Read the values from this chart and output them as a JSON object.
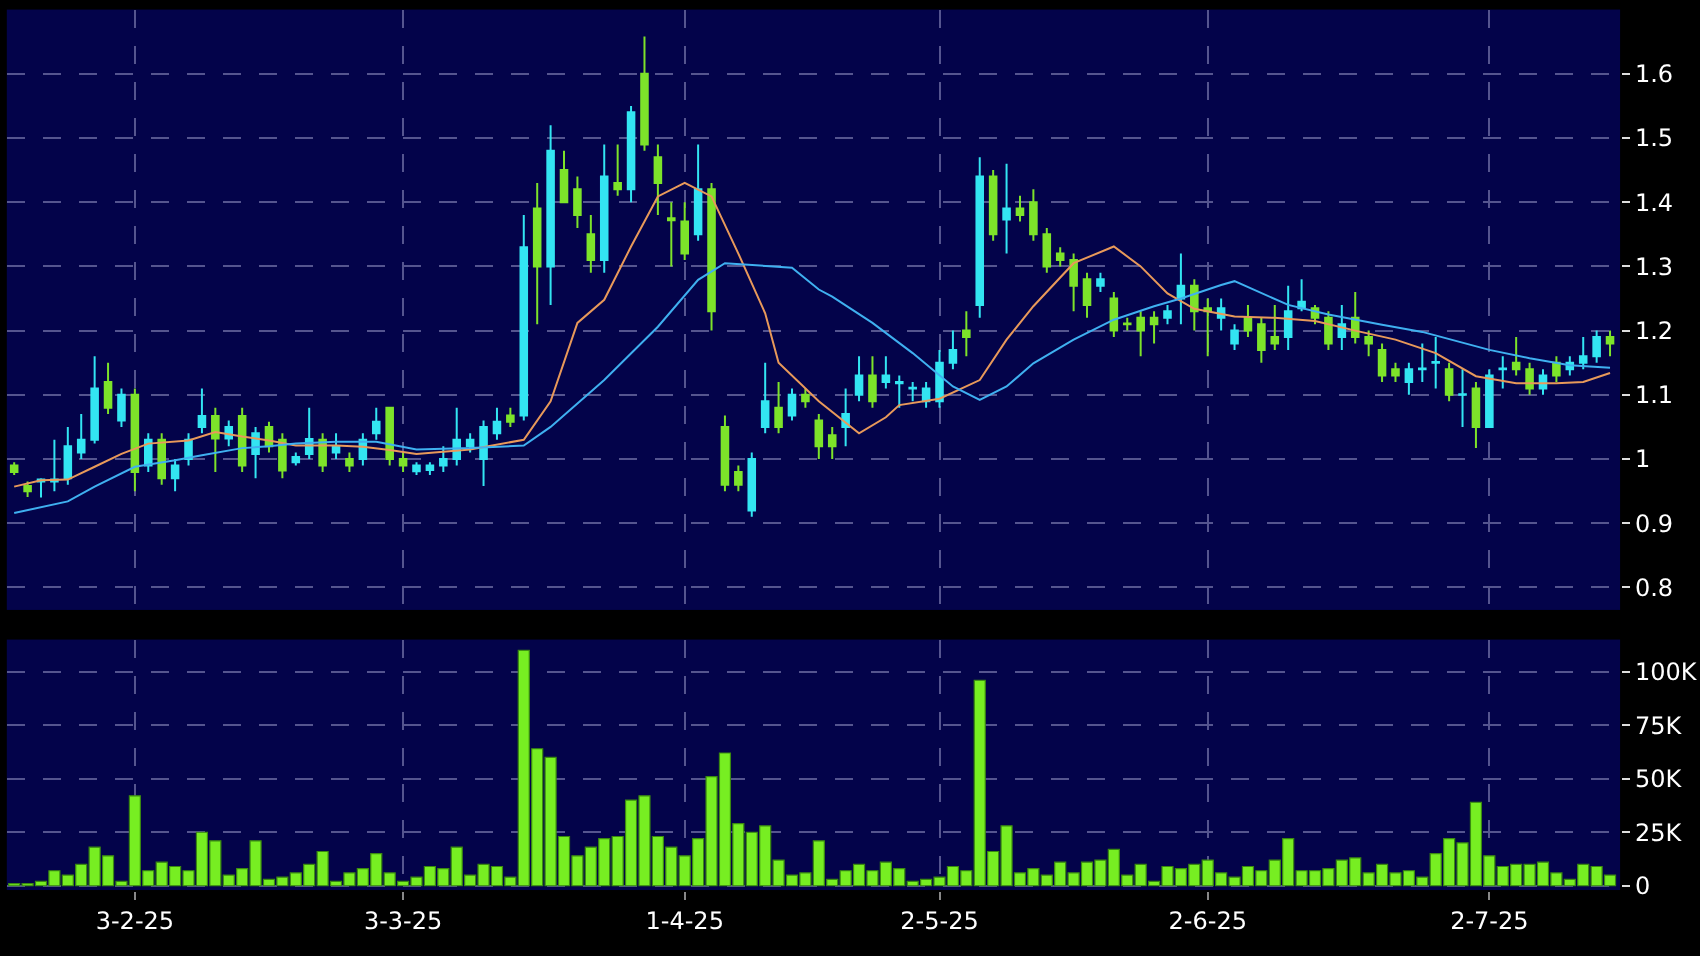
{
  "chart_data": [
    {
      "type": "candlestick",
      "categories": [
        null,
        null,
        null,
        null,
        null,
        null,
        null,
        null,
        null,
        null,
        null,
        null,
        null,
        null,
        null,
        null,
        null,
        null,
        null,
        null,
        null,
        null,
        null,
        null,
        null,
        null,
        null,
        null,
        null,
        null,
        null,
        null,
        null,
        null,
        null,
        null,
        null,
        null,
        null,
        null,
        null,
        null,
        null,
        null,
        null,
        null,
        null,
        null,
        null,
        null,
        null,
        null,
        null,
        null,
        null,
        null,
        null,
        null,
        null,
        null,
        null,
        null,
        null,
        null,
        null,
        null,
        null,
        null,
        null,
        null,
        null,
        null,
        null,
        null,
        null,
        null,
        null,
        null,
        null,
        null,
        null,
        null,
        null,
        null,
        null,
        null,
        null,
        null,
        null,
        null,
        null,
        null,
        null,
        null,
        null,
        null,
        null,
        null,
        null,
        null,
        null,
        null,
        null,
        null,
        null,
        null,
        null,
        null,
        null,
        null,
        null,
        null,
        null,
        null,
        null,
        null,
        null,
        null,
        null,
        null
      ],
      "ohlc": [
        [
          0.99,
          0.995,
          0.975,
          0.98
        ],
        [
          0.958,
          0.965,
          0.941,
          0.95
        ],
        [
          0.965,
          0.97,
          0.94,
          0.968
        ],
        [
          0.965,
          1.03,
          0.95,
          0.968
        ],
        [
          0.97,
          1.05,
          0.96,
          1.02
        ],
        [
          1.01,
          1.07,
          1.0,
          1.03
        ],
        [
          1.03,
          1.16,
          1.024,
          1.11
        ],
        [
          1.12,
          1.15,
          1.07,
          1.08
        ],
        [
          1.06,
          1.11,
          1.05,
          1.1
        ],
        [
          1.1,
          1.11,
          0.95,
          0.98
        ],
        [
          0.99,
          1.04,
          0.98,
          1.03
        ],
        [
          1.03,
          1.04,
          0.96,
          0.97
        ],
        [
          0.97,
          1.0,
          0.95,
          0.99
        ],
        [
          1.0,
          1.04,
          0.99,
          1.03
        ],
        [
          1.05,
          1.11,
          1.04,
          1.067
        ],
        [
          1.067,
          1.08,
          0.98,
          1.032
        ],
        [
          1.032,
          1.06,
          1.02,
          1.05
        ],
        [
          1.067,
          1.08,
          0.98,
          0.99
        ],
        [
          1.008,
          1.05,
          0.97,
          1.04
        ],
        [
          1.05,
          1.058,
          1.01,
          1.02
        ],
        [
          1.03,
          1.04,
          0.97,
          0.982
        ],
        [
          0.995,
          1.01,
          0.99,
          1.003
        ],
        [
          1.008,
          1.08,
          1.0,
          1.031
        ],
        [
          1.03,
          1.04,
          0.98,
          0.99
        ],
        [
          1.01,
          1.04,
          1.0,
          1.02
        ],
        [
          1.0,
          1.01,
          0.98,
          0.99
        ],
        [
          1.0,
          1.04,
          0.99,
          1.03
        ],
        [
          1.04,
          1.08,
          1.03,
          1.058
        ],
        [
          1.08,
          1.08,
          0.99,
          1.0
        ],
        [
          1.0,
          1.01,
          0.98,
          0.99
        ],
        [
          0.981,
          0.995,
          0.975,
          0.99
        ],
        [
          0.983,
          0.995,
          0.975,
          0.99
        ],
        [
          0.99,
          1.02,
          0.98,
          1.0
        ],
        [
          1.0,
          1.08,
          0.99,
          1.03
        ],
        [
          1.02,
          1.04,
          1.01,
          1.03
        ],
        [
          1.0,
          1.06,
          0.958,
          1.05
        ],
        [
          1.04,
          1.08,
          1.03,
          1.058
        ],
        [
          1.068,
          1.08,
          1.05,
          1.058
        ],
        [
          1.068,
          1.38,
          1.06,
          1.33
        ],
        [
          1.39,
          1.43,
          1.21,
          1.3
        ],
        [
          1.3,
          1.52,
          1.24,
          1.48
        ],
        [
          1.45,
          1.48,
          1.4,
          1.4
        ],
        [
          1.42,
          1.44,
          1.36,
          1.38
        ],
        [
          1.35,
          1.38,
          1.29,
          1.31
        ],
        [
          1.31,
          1.49,
          1.29,
          1.44
        ],
        [
          1.43,
          1.49,
          1.41,
          1.42
        ],
        [
          1.42,
          1.55,
          1.4,
          1.54
        ],
        [
          1.6,
          1.658,
          1.48,
          1.49
        ],
        [
          1.47,
          1.49,
          1.38,
          1.43
        ],
        [
          1.375,
          1.4,
          1.3,
          1.372
        ],
        [
          1.37,
          1.4,
          1.31,
          1.32
        ],
        [
          1.35,
          1.49,
          1.34,
          1.42
        ],
        [
          1.42,
          1.43,
          1.2,
          1.23
        ],
        [
          1.05,
          1.068,
          0.95,
          0.96
        ],
        [
          0.98,
          0.99,
          0.95,
          0.96
        ],
        [
          0.92,
          1.01,
          0.91,
          1.0
        ],
        [
          1.05,
          1.15,
          1.04,
          1.09
        ],
        [
          1.08,
          1.12,
          1.04,
          1.05
        ],
        [
          1.068,
          1.11,
          1.06,
          1.1
        ],
        [
          1.1,
          1.11,
          1.08,
          1.09
        ],
        [
          1.06,
          1.07,
          1.0,
          1.02
        ],
        [
          1.037,
          1.05,
          1.0,
          1.02
        ],
        [
          1.05,
          1.11,
          1.02,
          1.07
        ],
        [
          1.1,
          1.16,
          1.09,
          1.13
        ],
        [
          1.13,
          1.16,
          1.08,
          1.09
        ],
        [
          1.12,
          1.16,
          1.11,
          1.13
        ],
        [
          1.118,
          1.13,
          1.08,
          1.12
        ],
        [
          1.11,
          1.12,
          1.09,
          1.111
        ],
        [
          1.09,
          1.12,
          1.08,
          1.11
        ],
        [
          1.09,
          1.17,
          1.08,
          1.15
        ],
        [
          1.15,
          1.2,
          1.14,
          1.17
        ],
        [
          1.2,
          1.23,
          1.16,
          1.19
        ],
        [
          1.24,
          1.47,
          1.22,
          1.44
        ],
        [
          1.44,
          1.45,
          1.34,
          1.35
        ],
        [
          1.373,
          1.46,
          1.32,
          1.39
        ],
        [
          1.39,
          1.41,
          1.37,
          1.38
        ],
        [
          1.4,
          1.42,
          1.34,
          1.35
        ],
        [
          1.35,
          1.36,
          1.29,
          1.3
        ],
        [
          1.32,
          1.33,
          1.3,
          1.31
        ],
        [
          1.31,
          1.32,
          1.23,
          1.27
        ],
        [
          1.28,
          1.29,
          1.22,
          1.24
        ],
        [
          1.27,
          1.29,
          1.26,
          1.28
        ],
        [
          1.25,
          1.26,
          1.19,
          1.2
        ],
        [
          1.211,
          1.22,
          1.2,
          1.21
        ],
        [
          1.22,
          1.23,
          1.16,
          1.2
        ],
        [
          1.22,
          1.23,
          1.18,
          1.21
        ],
        [
          1.22,
          1.24,
          1.21,
          1.23
        ],
        [
          1.25,
          1.32,
          1.21,
          1.27
        ],
        [
          1.27,
          1.28,
          1.2,
          1.23
        ],
        [
          1.235,
          1.25,
          1.16,
          1.23
        ],
        [
          1.22,
          1.25,
          1.2,
          1.235
        ],
        [
          1.18,
          1.21,
          1.17,
          1.2
        ],
        [
          1.22,
          1.24,
          1.19,
          1.2
        ],
        [
          1.21,
          1.22,
          1.15,
          1.17
        ],
        [
          1.19,
          1.24,
          1.17,
          1.18
        ],
        [
          1.19,
          1.27,
          1.17,
          1.23
        ],
        [
          1.235,
          1.28,
          1.23,
          1.245
        ],
        [
          1.235,
          1.24,
          1.21,
          1.22
        ],
        [
          1.22,
          1.23,
          1.17,
          1.18
        ],
        [
          1.19,
          1.24,
          1.17,
          1.21
        ],
        [
          1.22,
          1.26,
          1.18,
          1.19
        ],
        [
          1.19,
          1.2,
          1.16,
          1.18
        ],
        [
          1.17,
          1.18,
          1.12,
          1.13
        ],
        [
          1.14,
          1.15,
          1.12,
          1.13
        ],
        [
          1.12,
          1.15,
          1.1,
          1.14
        ],
        [
          1.14,
          1.18,
          1.12,
          1.141
        ],
        [
          1.15,
          1.19,
          1.11,
          1.151
        ],
        [
          1.14,
          1.15,
          1.09,
          1.1
        ],
        [
          1.1,
          1.14,
          1.05,
          1.101
        ],
        [
          1.11,
          1.12,
          1.017,
          1.05
        ],
        [
          1.05,
          1.14,
          1.05,
          1.13
        ],
        [
          1.14,
          1.16,
          1.11,
          1.141
        ],
        [
          1.15,
          1.19,
          1.13,
          1.14
        ],
        [
          1.14,
          1.15,
          1.1,
          1.11
        ],
        [
          1.11,
          1.14,
          1.1,
          1.13
        ],
        [
          1.15,
          1.16,
          1.12,
          1.13
        ],
        [
          1.14,
          1.16,
          1.13,
          1.15
        ],
        [
          1.15,
          1.19,
          1.14,
          1.16
        ],
        [
          1.16,
          1.2,
          1.15,
          1.19
        ],
        [
          1.19,
          1.2,
          1.16,
          1.18
        ]
      ],
      "colors": [
        "#7de32a",
        "#7de32a",
        "#33e5f2",
        "#33e5f2",
        "#33e5f2",
        "#33e5f2",
        "#33e5f2",
        "#7de32a",
        "#33e5f2",
        "#7de32a",
        "#33e5f2",
        "#7de32a",
        "#33e5f2",
        "#33e5f2",
        "#33e5f2",
        "#7de32a",
        "#33e5f2",
        "#7de32a",
        "#33e5f2",
        "#7de32a",
        "#7de32a",
        "#33e5f2",
        "#33e5f2",
        "#7de32a",
        "#33e5f2",
        "#7de32a",
        "#33e5f2",
        "#33e5f2",
        "#7de32a",
        "#7de32a",
        "#33e5f2",
        "#33e5f2",
        "#33e5f2",
        "#33e5f2",
        "#33e5f2",
        "#33e5f2",
        "#33e5f2",
        "#7de32a",
        "#33e5f2",
        "#7de32a",
        "#33e5f2",
        "#7de32a",
        "#7de32a",
        "#7de32a",
        "#33e5f2",
        "#7de32a",
        "#33e5f2",
        "#7de32a",
        "#7de32a",
        "#7de32a",
        "#7de32a",
        "#33e5f2",
        "#7de32a",
        "#7de32a",
        "#7de32a",
        "#33e5f2",
        "#33e5f2",
        "#7de32a",
        "#33e5f2",
        "#7de32a",
        "#7de32a",
        "#7de32a",
        "#33e5f2",
        "#33e5f2",
        "#7de32a",
        "#33e5f2",
        "#33e5f2",
        "#33e5f2",
        "#33e5f2",
        "#33e5f2",
        "#33e5f2",
        "#7de32a",
        "#33e5f2",
        "#7de32a",
        "#33e5f2",
        "#7de32a",
        "#7de32a",
        "#7de32a",
        "#7de32a",
        "#7de32a",
        "#7de32a",
        "#33e5f2",
        "#7de32a",
        "#7de32a",
        "#7de32a",
        "#7de32a",
        "#33e5f2",
        "#33e5f2",
        "#7de32a",
        "#7de32a",
        "#33e5f2",
        "#33e5f2",
        "#7de32a",
        "#7de32a",
        "#7de32a",
        "#33e5f2",
        "#33e5f2",
        "#7de32a",
        "#7de32a",
        "#33e5f2",
        "#7de32a",
        "#7de32a",
        "#7de32a",
        "#7de32a",
        "#33e5f2",
        "#33e5f2",
        "#33e5f2",
        "#7de32a",
        "#33e5f2",
        "#7de32a",
        "#33e5f2",
        "#33e5f2",
        "#7de32a",
        "#7de32a",
        "#33e5f2",
        "#7de32a",
        "#33e5f2",
        "#33e5f2",
        "#33e5f2",
        "#7de32a"
      ],
      "series": [
        {
          "type": "line",
          "color": "#e8995a",
          "values": [
            0.957,
            null,
            0.967,
            null,
            0.968,
            null,
            0.988,
            null,
            1.008,
            null,
            1.024,
            null,
            null,
            1.029,
            null,
            1.042,
            null,
            1.035,
            null,
            1.029,
            null,
            1.021,
            null,
            null,
            1.021,
            null,
            1.019,
            null,
            1.014,
            null,
            1.008,
            null,
            null,
            null,
            1.015,
            null,
            null,
            null,
            1.03,
            null,
            1.09,
            null,
            1.212,
            null,
            1.248,
            null,
            1.331,
            null,
            1.409,
            null,
            1.43,
            null,
            1.409,
            null,
            1.32,
            null,
            1.227,
            1.15,
            null,
            null,
            1.09,
            null,
            null,
            1.04,
            null,
            1.065,
            1.084,
            null,
            null,
            1.094,
            null,
            null,
            1.123,
            null,
            1.186,
            null,
            1.238,
            null,
            null,
            1.305,
            null,
            null,
            1.331,
            null,
            1.3,
            null,
            1.258,
            null,
            1.234,
            null,
            null,
            1.222,
            null,
            null,
            1.22,
            null,
            null,
            1.215,
            null,
            null,
            1.2,
            null,
            null,
            1.186,
            null,
            null,
            1.165,
            null,
            null,
            1.129,
            null,
            null,
            1.118,
            null,
            null,
            1.118,
            null,
            1.12,
            null,
            1.134
          ]
        },
        {
          "type": "line",
          "color": "#3fb0f0",
          "values": [
            0.916,
            null,
            null,
            null,
            0.934,
            null,
            0.957,
            null,
            null,
            0.988,
            null,
            null,
            0.998,
            null,
            1.006,
            null,
            null,
            1.017,
            null,
            1.02,
            null,
            1.024,
            null,
            null,
            1.027,
            null,
            null,
            1.027,
            null,
            null,
            1.015,
            null,
            null,
            null,
            1.017,
            null,
            null,
            null,
            1.021,
            null,
            1.05,
            null,
            null,
            null,
            1.123,
            null,
            null,
            null,
            1.206,
            null,
            null,
            1.279,
            null,
            1.305,
            null,
            null,
            null,
            null,
            1.298,
            null,
            1.264,
            1.253,
            null,
            null,
            1.212,
            null,
            null,
            1.165,
            null,
            null,
            1.113,
            null,
            1.092,
            null,
            1.113,
            null,
            1.149,
            null,
            null,
            1.186,
            null,
            null,
            1.217,
            null,
            null,
            1.238,
            null,
            1.25,
            null,
            null,
            1.271,
            1.277,
            null,
            null,
            null,
            1.24,
            null,
            null,
            1.225,
            null,
            null,
            null,
            1.209,
            null,
            null,
            1.198,
            null,
            null,
            null,
            null,
            1.17,
            null,
            null,
            1.157,
            null,
            null,
            1.146,
            null,
            null,
            1.142
          ]
        }
      ],
      "ylim": [
        0.765,
        1.7
      ],
      "yticks": [
        {
          "value": 0.8,
          "label": "0.8"
        },
        {
          "value": 0.9,
          "label": "0.9"
        },
        1,
        {
          "value": 1.1,
          "label": "1.1"
        },
        {
          "value": 1.2,
          "label": "1.2"
        },
        {
          "value": 1.3,
          "label": "1.3"
        },
        {
          "value": 1.4,
          "label": "1.4"
        },
        {
          "value": 1.5,
          "label": "1.5"
        },
        {
          "value": 1.6,
          "label": "1.6"
        }
      ],
      "grid": true,
      "tick_labels": "y"
    },
    {
      "type": "bar",
      "categories": [
        null,
        null,
        null,
        null,
        null,
        null,
        null,
        null,
        null,
        "3-2-25",
        null,
        null,
        null,
        null,
        null,
        null,
        null,
        null,
        null,
        null,
        null,
        null,
        null,
        null,
        null,
        null,
        null,
        null,
        null,
        "3-3-25",
        null,
        null,
        null,
        null,
        null,
        null,
        null,
        null,
        null,
        null,
        null,
        null,
        null,
        null,
        null,
        null,
        null,
        null,
        null,
        null,
        "1-4-25",
        null,
        null,
        null,
        null,
        null,
        null,
        null,
        null,
        null,
        null,
        null,
        null,
        null,
        null,
        null,
        null,
        null,
        null,
        "2-5-25",
        null,
        null,
        null,
        null,
        null,
        null,
        null,
        null,
        null,
        null,
        null,
        null,
        null,
        null,
        null,
        null,
        null,
        null,
        null,
        "2-6-25",
        null,
        null,
        null,
        null,
        null,
        null,
        null,
        null,
        null,
        null,
        null,
        null,
        null,
        null,
        null,
        null,
        null,
        null,
        null,
        null,
        "2-7-25",
        null,
        null,
        null,
        null,
        null,
        null,
        null,
        null,
        null
      ],
      "values": [
        1000,
        1000,
        2000,
        7000,
        5000,
        10000,
        18000,
        14000,
        2000,
        42000,
        7000,
        11000,
        9000,
        7000,
        25000,
        21000,
        5000,
        8000,
        21000,
        3000,
        4000,
        6000,
        10000,
        16000,
        2000,
        6000,
        8000,
        15000,
        6000,
        2000,
        4000,
        9000,
        8000,
        18000,
        5000,
        10000,
        9000,
        4000,
        110000,
        64000,
        60000,
        23000,
        14000,
        18000,
        22000,
        23000,
        40000,
        42000,
        23000,
        18000,
        14000,
        22000,
        51000,
        62000,
        29000,
        25000,
        28000,
        12000,
        5000,
        6000,
        21000,
        3000,
        7000,
        10000,
        7000,
        11000,
        8000,
        2000,
        3000,
        4000,
        9000,
        7000,
        96000,
        16000,
        28000,
        6000,
        8000,
        5000,
        11000,
        6000,
        11000,
        12000,
        17000,
        5000,
        10000,
        2000,
        9000,
        8000,
        10000,
        12000,
        6000,
        4000,
        9000,
        7000,
        12000,
        22000,
        7000,
        7000,
        8000,
        12000,
        13000,
        6000,
        10000,
        6000,
        7000,
        4000,
        15000,
        22000,
        20000,
        39000,
        14000,
        9000,
        10000,
        10000,
        11000,
        6000,
        3000,
        10000,
        9000,
        5000
      ],
      "color": "#77ee22",
      "ylim": [
        -2000,
        115000
      ],
      "yticks": [
        0,
        {
          "value": 25000,
          "label": "25K"
        },
        {
          "value": 50000,
          "label": "50K"
        },
        {
          "value": 75000,
          "label": "75K"
        },
        {
          "value": 100000,
          "label": "100K"
        }
      ],
      "grid": true
    }
  ]
}
